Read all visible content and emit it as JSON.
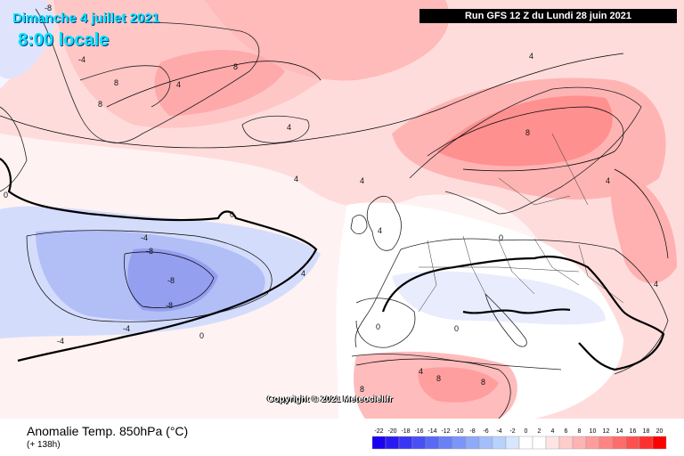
{
  "header": {
    "date": "Dimanche 4 juillet 2021",
    "time": "8:00 locale",
    "run": "Run GFS 12 Z du Lundi 28 juin 2021"
  },
  "copyright": "Copyright © 2021 Meteociel.fr",
  "footer": {
    "variable": "Anomalie Temp. 850hPa (°C)",
    "lead": "(+ 138h)"
  },
  "legend": {
    "ticks": [
      "-22",
      "-20",
      "-18",
      "-16",
      "-14",
      "-12",
      "-10",
      "-8",
      "-6",
      "-4",
      "-2",
      "0",
      "2",
      "4",
      "6",
      "8",
      "10",
      "12",
      "14",
      "16",
      "18",
      "20"
    ],
    "colors": [
      "#1c00f0",
      "#2a1af2",
      "#3a34f4",
      "#4a4ef5",
      "#5a68f6",
      "#6a80f7",
      "#7c95f8",
      "#8faaf9",
      "#a3bffa",
      "#b8d2fc",
      "#d8e6fe",
      "#ffffff",
      "#ffffff",
      "#ffe4e4",
      "#ffcccc",
      "#ffb4b4",
      "#ff9c9c",
      "#ff8484",
      "#ff6c6c",
      "#ff5050",
      "#ff3030",
      "#ff0000"
    ]
  },
  "contour_labels": [
    {
      "text": "-8"
    },
    {
      "text": "-4"
    },
    {
      "text": "8"
    },
    {
      "text": "4"
    },
    {
      "text": "4"
    },
    {
      "text": "8"
    },
    {
      "text": "8"
    },
    {
      "text": "-8"
    },
    {
      "text": "-8"
    },
    {
      "text": "-8"
    },
    {
      "text": "-4"
    },
    {
      "text": "-4"
    },
    {
      "text": "-4"
    },
    {
      "text": "0"
    },
    {
      "text": "0"
    },
    {
      "text": "0"
    },
    {
      "text": "4"
    },
    {
      "text": "4"
    },
    {
      "text": "4"
    },
    {
      "text": "4"
    },
    {
      "text": "8"
    },
    {
      "text": "4"
    },
    {
      "text": "4"
    },
    {
      "text": "0"
    },
    {
      "text": "0"
    },
    {
      "text": "0"
    },
    {
      "text": "8"
    },
    {
      "text": "8"
    },
    {
      "text": "8"
    },
    {
      "text": "4"
    },
    {
      "text": "4"
    }
  ]
}
